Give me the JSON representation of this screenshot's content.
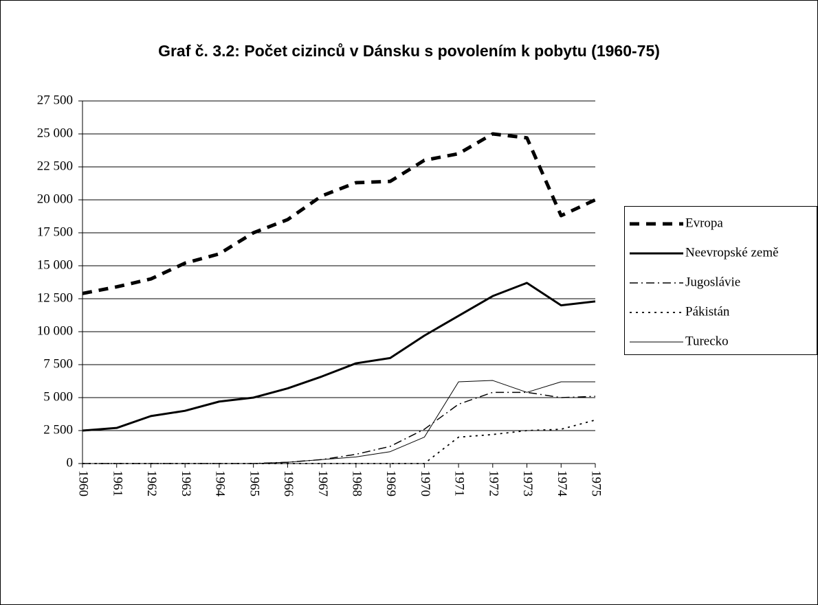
{
  "chart_data": {
    "type": "line",
    "title": "Graf č. 3.2: Počet cizinců v Dánsku s povolením k pobytu (1960-75)",
    "categories": [
      "1960",
      "1961",
      "1962",
      "1963",
      "1964",
      "1965",
      "1966",
      "1967",
      "1968",
      "1969",
      "1970",
      "1971",
      "1972",
      "1973",
      "1974",
      "1975"
    ],
    "ylim": [
      0,
      27500
    ],
    "yticks": [
      0,
      {
        "value": 2500,
        "label": "2 500"
      },
      {
        "value": 5000,
        "label": "5 000"
      },
      {
        "value": 7500,
        "label": "7 500"
      },
      {
        "value": 10000,
        "label": "10 000"
      },
      {
        "value": 12500,
        "label": "12 500"
      },
      {
        "value": 15000,
        "label": "15 000"
      },
      {
        "value": 17500,
        "label": "17 500"
      },
      {
        "value": 20000,
        "label": "20 000"
      },
      {
        "value": 22500,
        "label": "22 500"
      },
      {
        "value": 25000,
        "label": "25 000"
      },
      {
        "value": 27500,
        "label": "27 500"
      }
    ],
    "grid": true,
    "legend": "right",
    "series": [
      {
        "name": "Evropa",
        "color": "#000000",
        "style": "dash",
        "values": [
          12900,
          13400,
          14000,
          15200,
          15900,
          17500,
          18500,
          20300,
          21300,
          21400,
          23000,
          23500,
          25000,
          24700,
          18800,
          20000
        ]
      },
      {
        "name": "Neevropské země",
        "color": "#000000",
        "style": "thick",
        "values": [
          2500,
          2700,
          3600,
          4000,
          4700,
          5000,
          5700,
          6600,
          7600,
          8000,
          9700,
          11200,
          12700,
          13700,
          12000,
          12300
        ]
      },
      {
        "name": "Jugoslávie",
        "color": "#000000",
        "style": "dash-dot",
        "values": [
          0,
          0,
          0,
          0,
          0,
          0,
          100,
          300,
          700,
          1300,
          2600,
          4500,
          5400,
          5400,
          5000,
          5100
        ]
      },
      {
        "name": "Pákistán",
        "color": "#000000",
        "style": "dot",
        "values": [
          0,
          0,
          0,
          0,
          0,
          0,
          0,
          0,
          0,
          0,
          0,
          2000,
          2200,
          2500,
          2600,
          3300
        ]
      },
      {
        "name": "Turecko",
        "color": "#000000",
        "style": "thin",
        "values": [
          0,
          0,
          0,
          0,
          0,
          0,
          100,
          300,
          500,
          900,
          2000,
          6200,
          6300,
          5400,
          6200,
          6200
        ]
      }
    ]
  }
}
